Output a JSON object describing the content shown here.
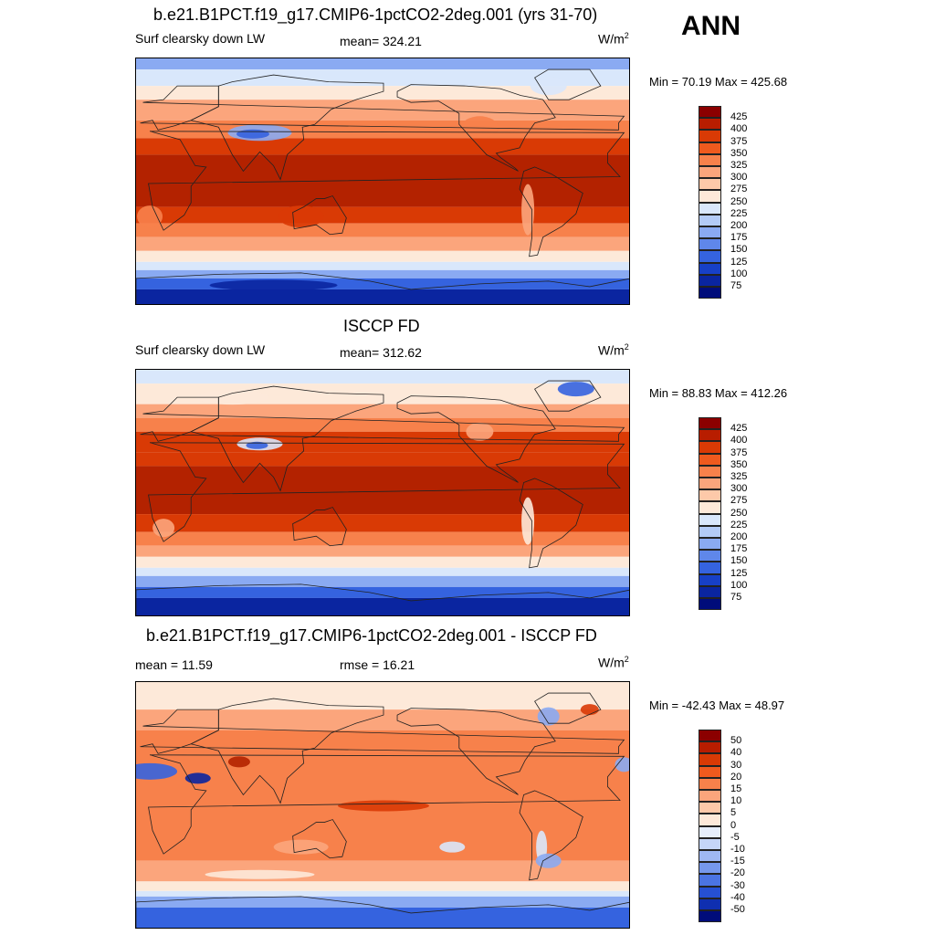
{
  "season": "ANN",
  "panels": [
    {
      "id": "model",
      "title": "b.e21.B1PCT.f19_g17.CMIP6-1pctCO2-2deg.001 (yrs 31-70)",
      "left_label": "Surf clearsky down LW",
      "center_label": "mean= 324.21",
      "units": "W/m",
      "units_exp": "2",
      "minmax": "Min =  70.19 Max = 425.68",
      "colorbar": {
        "labels": [
          "425",
          "400",
          "375",
          "350",
          "325",
          "300",
          "275",
          "250",
          "225",
          "200",
          "175",
          "150",
          "125",
          "100",
          "75"
        ],
        "colors": [
          "#8b0000",
          "#b81d00",
          "#d93a05",
          "#ef5a1e",
          "#f7814b",
          "#fba57c",
          "#fdc9a9",
          "#fde9d9",
          "#d9e7fb",
          "#b3cbf7",
          "#8aaaf2",
          "#5f87ea",
          "#3563df",
          "#1740c7",
          "#0a25a0",
          "#000c7a"
        ]
      }
    },
    {
      "id": "obs",
      "title": "ISCCP FD",
      "left_label": "Surf clearsky down LW",
      "center_label": "mean= 312.62",
      "units": "W/m",
      "units_exp": "2",
      "minmax": "Min =  88.83 Max = 412.26",
      "colorbar": {
        "labels": [
          "425",
          "400",
          "375",
          "350",
          "325",
          "300",
          "275",
          "250",
          "225",
          "200",
          "175",
          "150",
          "125",
          "100",
          "75"
        ],
        "colors": [
          "#8b0000",
          "#b81d00",
          "#d93a05",
          "#ef5a1e",
          "#f7814b",
          "#fba57c",
          "#fdc9a9",
          "#fde9d9",
          "#d9e7fb",
          "#b3cbf7",
          "#8aaaf2",
          "#5f87ea",
          "#3563df",
          "#1740c7",
          "#0a25a0",
          "#000c7a"
        ]
      }
    },
    {
      "id": "diff",
      "title": "b.e21.B1PCT.f19_g17.CMIP6-1pctCO2-2deg.001 - ISCCP FD",
      "left_label": "mean =  11.59",
      "center_label": "rmse =  16.21",
      "units": "W/m",
      "units_exp": "2",
      "minmax": "Min = -42.43 Max =  48.97",
      "colorbar": {
        "labels": [
          "50",
          "40",
          "30",
          "20",
          "15",
          "10",
          "5",
          "0",
          "-5",
          "-10",
          "-15",
          "-20",
          "-30",
          "-40",
          "-50"
        ],
        "colors": [
          "#8b0000",
          "#b81d00",
          "#d93a05",
          "#ef5a1e",
          "#f7814b",
          "#fba57c",
          "#fdc9a9",
          "#fde9d9",
          "#e6eefb",
          "#c5d6f8",
          "#9fb8f3",
          "#7698ec",
          "#4b74e3",
          "#2650d2",
          "#0f2fb0",
          "#000c7a"
        ]
      }
    }
  ],
  "map_colors": {
    "deep_red": "#b32200",
    "red": "#d93a05",
    "orange": "#f7814b",
    "peach": "#fba57c",
    "cream": "#fde9d9",
    "pale_blue": "#d9e7fb",
    "blue": "#8aaaf2",
    "mid_blue": "#3563df",
    "navy": "#0a25a0",
    "coast": "#222222"
  }
}
